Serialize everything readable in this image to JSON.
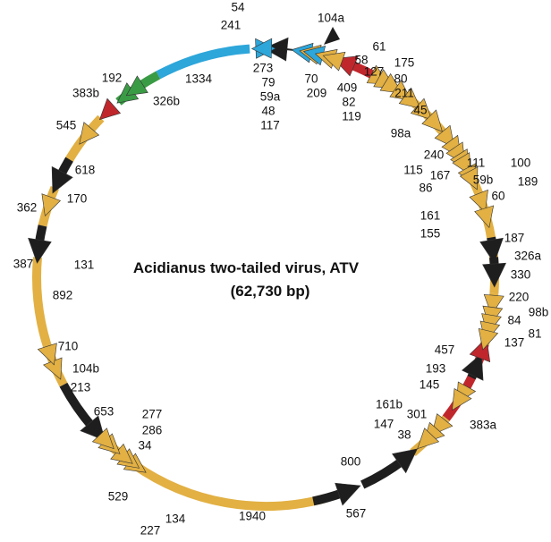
{
  "title": "Acidianus two-tailed virus, ATV",
  "subtitle": "(62,730 bp)",
  "colors": {
    "orf": "#E2B043",
    "blue": "#2DA6DA",
    "red": "#C0272D",
    "green": "#3A9B45",
    "black": "#1E1E1E"
  },
  "labels": [
    "54",
    "241",
    "104a",
    "61",
    "58",
    "175",
    "127",
    "80",
    "211",
    "273",
    "79",
    "59a",
    "48",
    "117",
    "70",
    "209",
    "409",
    "82",
    "119",
    "192",
    "1334",
    "383b",
    "326b",
    "545",
    "45",
    "98a",
    "240",
    "111",
    "100",
    "115",
    "167",
    "59b",
    "189",
    "86",
    "60",
    "618",
    "362",
    "170",
    "161",
    "155",
    "187",
    "387",
    "131",
    "326a",
    "330",
    "892",
    "220",
    "98b",
    "84",
    "81",
    "137",
    "710",
    "457",
    "104b",
    "213",
    "193",
    "145",
    "653",
    "277",
    "286",
    "34",
    "161b",
    "301",
    "383a",
    "147",
    "38",
    "800",
    "529",
    "227",
    "134",
    "1940",
    "567"
  ]
}
